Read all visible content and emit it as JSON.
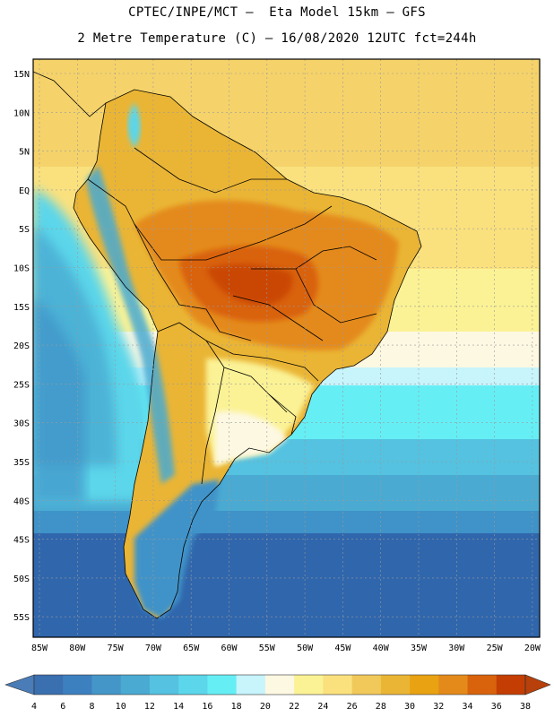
{
  "header": {
    "line1": "CPTEC/INPE/MCT –  Eta Model 15km – GFS",
    "line2": "2 Metre Temperature (C) – 16/08/2020 12UTC fct=244h"
  },
  "lat_labels": [
    "15N",
    "10N",
    "5N",
    "EQ",
    "5S",
    "10S",
    "15S",
    "20S",
    "25S",
    "30S",
    "35S",
    "40S",
    "45S",
    "50S",
    "55S"
  ],
  "lon_labels": [
    "85W",
    "80W",
    "75W",
    "70W",
    "65W",
    "60W",
    "55W",
    "50W",
    "45W",
    "40W",
    "35W",
    "30W",
    "25W",
    "20W"
  ],
  "colorbar": {
    "labels": [
      "4",
      "6",
      "8",
      "10",
      "12",
      "14",
      "16",
      "18",
      "20",
      "22",
      "24",
      "26",
      "28",
      "30",
      "32",
      "34",
      "36",
      "38"
    ],
    "colors": [
      "#3a6fb0",
      "#3d80c0",
      "#4496c8",
      "#4aaad2",
      "#54c2e0",
      "#5cd6ea",
      "#66eef5",
      "#c8f4fc",
      "#fdf8e2",
      "#fbf295",
      "#fae17e",
      "#f1c95a",
      "#eab535",
      "#e8a212",
      "#e48a1a",
      "#d9620c",
      "#c43e04"
    ],
    "low_arrow_color": "#4a7cb8",
    "high_arrow_color": "#b8400a"
  },
  "palette": {
    "ocean_south": "#3066ac",
    "ocean_mid": "#3f93c8",
    "ocean_cool": "#5cd6ea",
    "ocean_warm": "#fbf295",
    "tropics": "#fae17e",
    "land_hot": "#e48a1a",
    "land_hotter": "#d9620c",
    "andes": "#4aaad2",
    "border": "#000000"
  }
}
